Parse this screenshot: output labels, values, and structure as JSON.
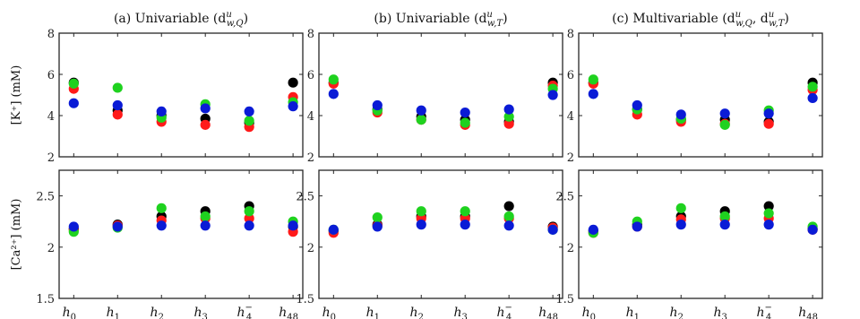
{
  "figure": {
    "colors": {
      "black": "#000000",
      "red": "#ff1a1a",
      "green": "#1fd21f",
      "blue": "#0a1bd6"
    }
  },
  "chart_data": [
    {
      "type": "scatter",
      "panel": "a",
      "row": "top",
      "title": "(a) Univariable (d",
      "title_sub_base": "u",
      "title_sub_idx": "w,Q",
      "title_close": ")",
      "ylabel": "[K⁺] (mM)",
      "categories": [
        "h0",
        "h1",
        "h2",
        "h3",
        "h4-",
        "h48"
      ],
      "ylim": [
        2,
        8
      ],
      "yticks": [
        "2",
        "4",
        "6",
        "8"
      ],
      "series": [
        {
          "color": "#000000",
          "values": [
            5.6,
            4.25,
            4.0,
            3.85,
            3.65,
            5.6
          ]
        },
        {
          "color": "#ff1a1a",
          "values": [
            5.3,
            4.05,
            3.7,
            3.55,
            3.45,
            4.9
          ]
        },
        {
          "color": "#1fd21f",
          "values": [
            5.55,
            5.35,
            3.9,
            4.55,
            3.75,
            4.65
          ]
        },
        {
          "color": "#0a1bd6",
          "values": [
            4.6,
            4.5,
            4.2,
            4.35,
            4.2,
            4.45
          ]
        }
      ]
    },
    {
      "type": "scatter",
      "panel": "a",
      "row": "bottom",
      "ylabel": "[Ca²⁺] (mM)",
      "categories": [
        "h0",
        "h1",
        "h2",
        "h3",
        "h4-",
        "h48"
      ],
      "ylim": [
        1.5,
        2.75
      ],
      "yticks": [
        "1.5",
        "2",
        "2.5"
      ],
      "series": [
        {
          "color": "#000000",
          "values": [
            2.18,
            2.22,
            2.3,
            2.35,
            2.4,
            2.2
          ]
        },
        {
          "color": "#ff1a1a",
          "values": [
            2.17,
            2.21,
            2.26,
            2.28,
            2.28,
            2.15
          ]
        },
        {
          "color": "#1fd21f",
          "values": [
            2.15,
            2.19,
            2.38,
            2.3,
            2.35,
            2.25
          ]
        },
        {
          "color": "#0a1bd6",
          "values": [
            2.2,
            2.2,
            2.21,
            2.21,
            2.21,
            2.21
          ]
        }
      ]
    },
    {
      "type": "scatter",
      "panel": "b",
      "row": "top",
      "title": "(b) Univariable (d",
      "title_sub_base": "u",
      "title_sub_idx": "w,T",
      "title_close": ")",
      "categories": [
        "h0",
        "h1",
        "h2",
        "h3",
        "h4-",
        "h48"
      ],
      "ylim": [
        2,
        8
      ],
      "yticks": [
        "2",
        "4",
        "6",
        "8"
      ],
      "series": [
        {
          "color": "#000000",
          "values": [
            5.6,
            4.3,
            3.95,
            3.8,
            3.7,
            5.6
          ]
        },
        {
          "color": "#ff1a1a",
          "values": [
            5.55,
            4.15,
            3.8,
            3.55,
            3.6,
            5.45
          ]
        },
        {
          "color": "#1fd21f",
          "values": [
            5.75,
            4.25,
            3.8,
            3.65,
            3.95,
            5.3
          ]
        },
        {
          "color": "#0a1bd6",
          "values": [
            5.05,
            4.5,
            4.25,
            4.15,
            4.3,
            5.0
          ]
        }
      ]
    },
    {
      "type": "scatter",
      "panel": "b",
      "row": "bottom",
      "categories": [
        "h0",
        "h1",
        "h2",
        "h3",
        "h4-",
        "h48"
      ],
      "ylim": [
        1.5,
        2.75
      ],
      "yticks": [
        "1.5",
        "2",
        "2.5"
      ],
      "series": [
        {
          "color": "#000000",
          "values": [
            2.16,
            2.22,
            2.3,
            2.3,
            2.4,
            2.2
          ]
        },
        {
          "color": "#ff1a1a",
          "values": [
            2.14,
            2.21,
            2.28,
            2.28,
            2.28,
            2.19
          ]
        },
        {
          "color": "#1fd21f",
          "values": [
            2.17,
            2.29,
            2.35,
            2.35,
            2.3,
            2.17
          ]
        },
        {
          "color": "#0a1bd6",
          "values": [
            2.17,
            2.2,
            2.22,
            2.22,
            2.21,
            2.17
          ]
        }
      ]
    },
    {
      "type": "scatter",
      "panel": "c",
      "row": "top",
      "title": "(c) Multivariable (d",
      "title_sub_base": "u",
      "title_sub_idx": "w,Q",
      "title_mid": ", d",
      "title_sub_base2": "u",
      "title_sub_idx2": "w,T",
      "title_close": ")",
      "categories": [
        "h0",
        "h1",
        "h2",
        "h3",
        "h4-",
        "h48"
      ],
      "ylim": [
        2,
        8
      ],
      "yticks": [
        "2",
        "4",
        "6",
        "8"
      ],
      "series": [
        {
          "color": "#000000",
          "values": [
            5.6,
            4.3,
            3.8,
            3.8,
            3.7,
            5.6
          ]
        },
        {
          "color": "#ff1a1a",
          "values": [
            5.55,
            4.05,
            3.7,
            3.6,
            3.6,
            5.25
          ]
        },
        {
          "color": "#1fd21f",
          "values": [
            5.75,
            4.3,
            3.85,
            3.55,
            4.25,
            5.4
          ]
        },
        {
          "color": "#0a1bd6",
          "values": [
            5.05,
            4.5,
            4.05,
            4.1,
            4.1,
            4.85
          ]
        }
      ]
    },
    {
      "type": "scatter",
      "panel": "c",
      "row": "bottom",
      "categories": [
        "h0",
        "h1",
        "h2",
        "h3",
        "h4-",
        "h48"
      ],
      "ylim": [
        1.5,
        2.75
      ],
      "yticks": [
        "1.5",
        "2",
        "2.5"
      ],
      "series": [
        {
          "color": "#000000",
          "values": [
            2.16,
            2.22,
            2.3,
            2.35,
            2.4,
            2.18
          ]
        },
        {
          "color": "#ff1a1a",
          "values": [
            2.14,
            2.2,
            2.27,
            2.28,
            2.28,
            2.17
          ]
        },
        {
          "color": "#1fd21f",
          "values": [
            2.14,
            2.25,
            2.38,
            2.3,
            2.33,
            2.2
          ]
        },
        {
          "color": "#0a1bd6",
          "values": [
            2.17,
            2.2,
            2.22,
            2.22,
            2.22,
            2.17
          ]
        }
      ]
    }
  ]
}
